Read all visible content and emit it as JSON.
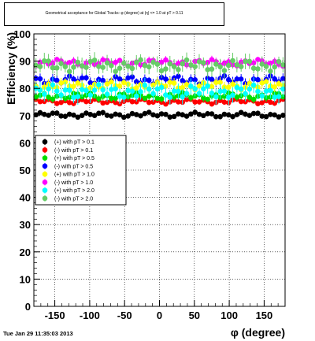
{
  "title": "Geometrical acceptance for Global Tracks: φ (degree) at |η| <= 1.0 at pT > 0.11",
  "timestamp": "Tue Jan 29 11:35:03 2013",
  "chart_data": {
    "type": "scatter",
    "xlabel": "φ (degree)",
    "ylabel": "Efficiency (%)",
    "xlim": [
      -180,
      180
    ],
    "ylim": [
      0,
      100
    ],
    "xticks": [
      -150,
      -100,
      -50,
      0,
      50,
      100,
      150
    ],
    "yticks": [
      0,
      10,
      20,
      30,
      40,
      50,
      60,
      70,
      80,
      90,
      100
    ],
    "x_step": 6,
    "grid": true,
    "legend_position": "left-middle",
    "series": [
      {
        "name": "(+) with pT > 0.1",
        "color": "#000000",
        "base": 70.3,
        "amp": 0.6,
        "err": 1.0
      },
      {
        "name": "(-) with pT > 0.1",
        "color": "#ff0000",
        "base": 75.2,
        "amp": 0.6,
        "err": 1.0
      },
      {
        "name": "(+) with pT > 0.5",
        "color": "#00dd00",
        "base": 77.2,
        "amp": 0.8,
        "err": 1.5
      },
      {
        "name": "(-) with pT > 0.5",
        "color": "#0000ff",
        "base": 83.0,
        "amp": 1.0,
        "err": 2.0
      },
      {
        "name": "(+) with pT > 1.0",
        "color": "#ffff00",
        "base": 81.0,
        "amp": 1.0,
        "err": 2.0
      },
      {
        "name": "(-) with pT > 1.0",
        "color": "#ff00ff",
        "base": 89.4,
        "amp": 0.8,
        "err": 1.5
      },
      {
        "name": "(+) with pT > 2.0",
        "color": "#00ffff",
        "base": 78.8,
        "amp": 1.6,
        "err": 3.0
      },
      {
        "name": "(-) with pT > 2.0",
        "color": "#66cc66",
        "base": 88.4,
        "amp": 1.4,
        "err": 3.0
      }
    ]
  }
}
